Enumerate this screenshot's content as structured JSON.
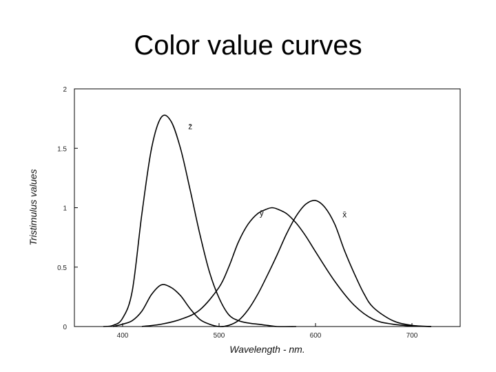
{
  "slide": {
    "title": "Color value curves"
  },
  "chart_data": {
    "type": "line",
    "title": "",
    "xlabel": "Wavelength - nm.",
    "ylabel": "Tristimulus values",
    "xlim": [
      350,
      750
    ],
    "ylim": [
      0,
      2
    ],
    "x_ticks": [
      400,
      500,
      600,
      700
    ],
    "x_tick_labels": [
      "400",
      "500",
      "600",
      "700"
    ],
    "y_ticks": [
      0,
      0.5,
      1,
      1.5,
      2
    ],
    "y_tick_labels": [
      "0",
      "0.5",
      "1",
      "1.5",
      "2"
    ],
    "grid": false,
    "series": [
      {
        "name": "z̄",
        "x": [
          380,
          390,
          400,
          410,
          420,
          430,
          440,
          450,
          460,
          470,
          480,
          490,
          500,
          510,
          520,
          530,
          540,
          550,
          560,
          580
        ],
        "y": [
          0.0,
          0.01,
          0.07,
          0.3,
          0.95,
          1.5,
          1.76,
          1.73,
          1.5,
          1.15,
          0.78,
          0.46,
          0.24,
          0.1,
          0.05,
          0.03,
          0.02,
          0.01,
          0.0,
          0.0
        ]
      },
      {
        "name": "ȳ",
        "x": [
          420,
          440,
          460,
          480,
          500,
          510,
          520,
          530,
          540,
          550,
          555,
          560,
          570,
          580,
          590,
          600,
          620,
          640,
          660,
          680,
          700,
          720
        ],
        "y": [
          0.0,
          0.02,
          0.06,
          0.14,
          0.33,
          0.5,
          0.71,
          0.86,
          0.95,
          0.99,
          1.0,
          0.99,
          0.95,
          0.87,
          0.76,
          0.63,
          0.38,
          0.18,
          0.06,
          0.02,
          0.005,
          0.0
        ]
      },
      {
        "name": "x̄",
        "x": [
          390,
          400,
          410,
          420,
          430,
          440,
          450,
          460,
          470,
          480,
          490,
          500,
          510,
          520,
          530,
          540,
          550,
          560,
          570,
          580,
          590,
          600,
          610,
          620,
          630,
          640,
          650,
          660,
          680,
          700,
          720
        ],
        "y": [
          0.0,
          0.02,
          0.05,
          0.13,
          0.27,
          0.35,
          0.33,
          0.26,
          0.15,
          0.06,
          0.02,
          0.0,
          0.01,
          0.05,
          0.14,
          0.27,
          0.43,
          0.6,
          0.78,
          0.93,
          1.03,
          1.06,
          1.0,
          0.86,
          0.64,
          0.45,
          0.28,
          0.16,
          0.05,
          0.01,
          0.0
        ]
      }
    ]
  }
}
